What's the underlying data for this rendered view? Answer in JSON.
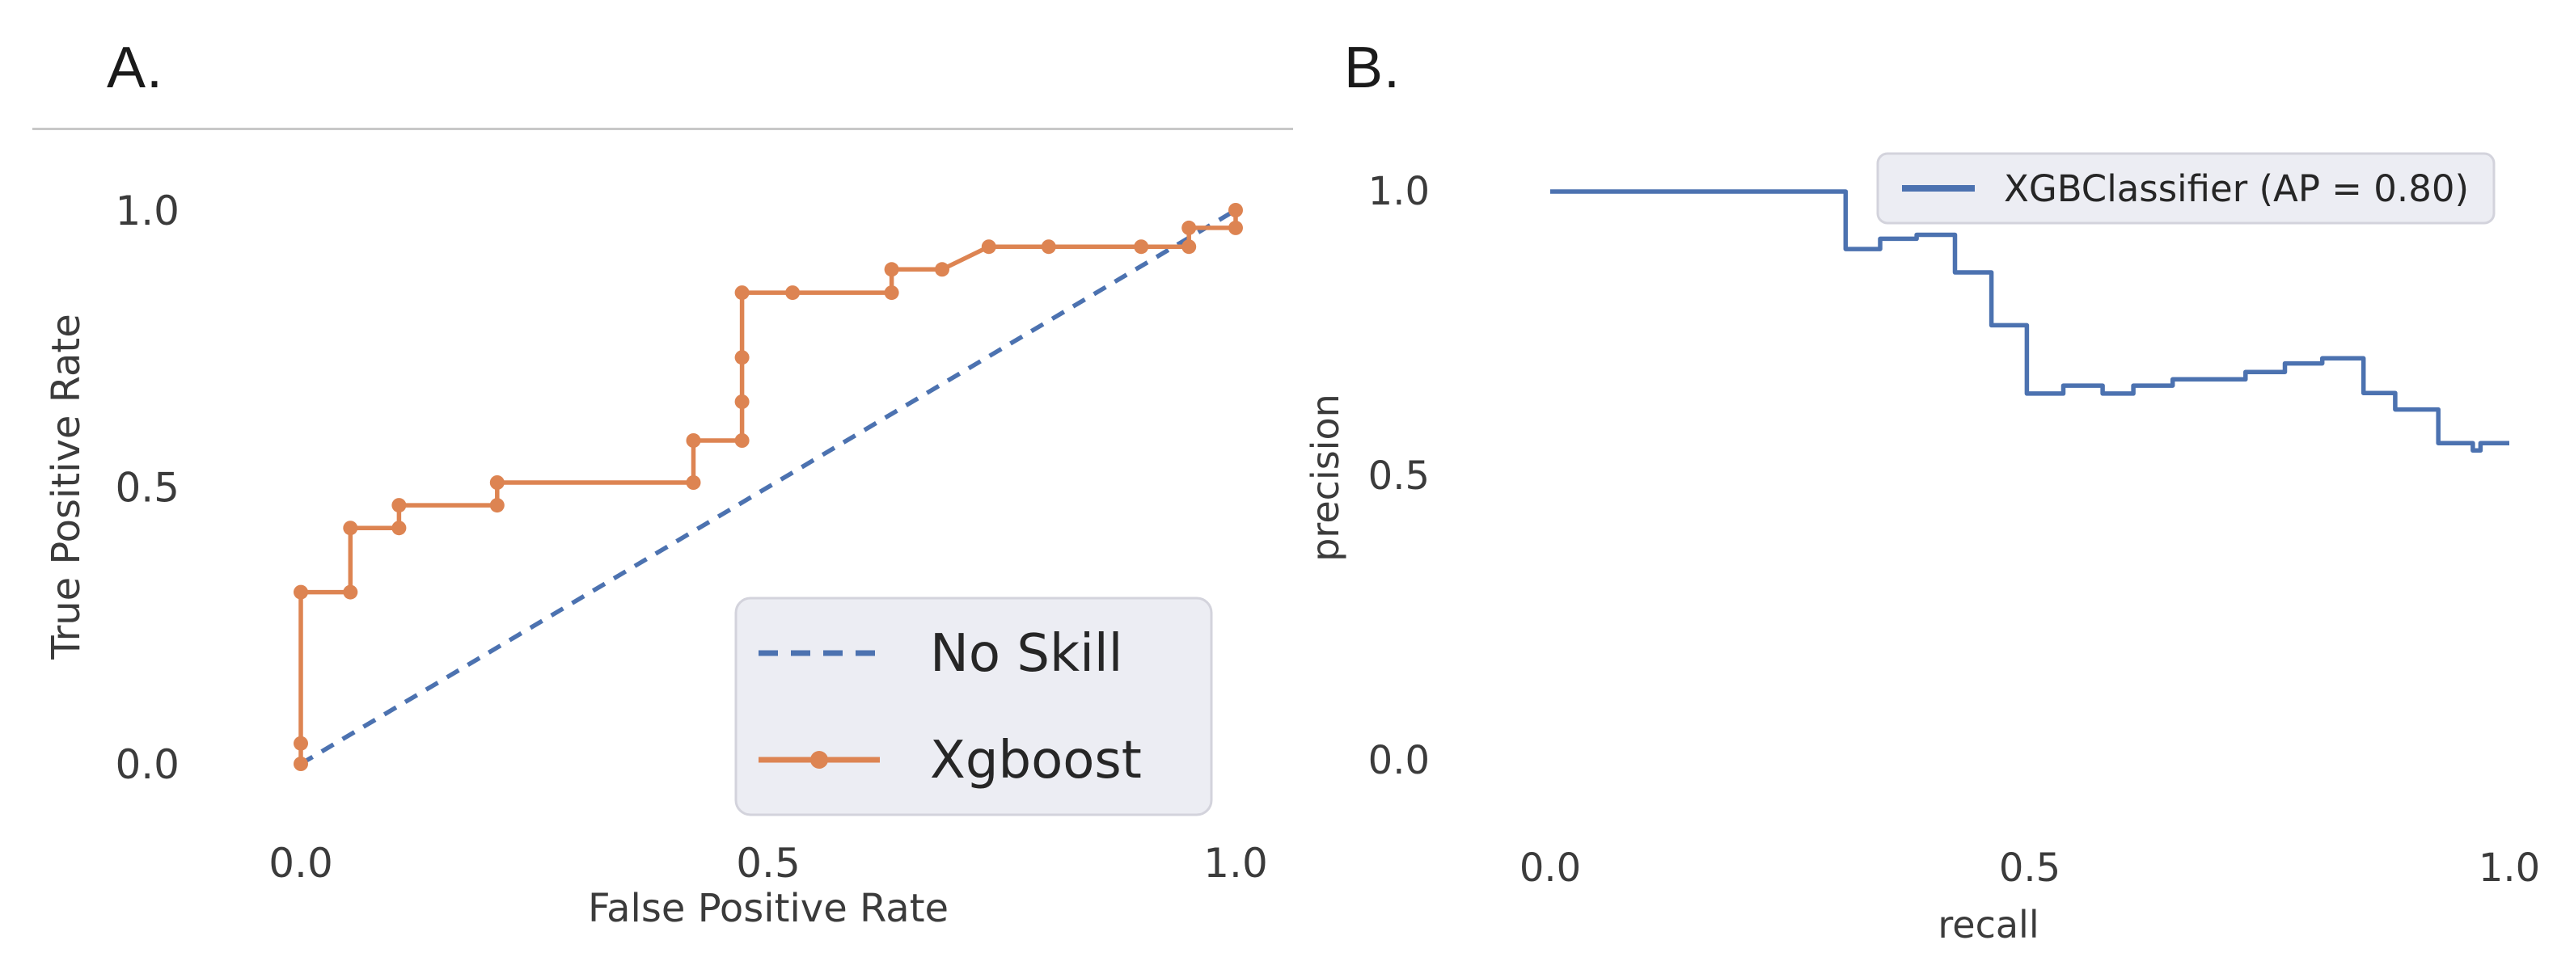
{
  "panels": [
    {
      "label": "A."
    },
    {
      "label": "B."
    }
  ],
  "colors": {
    "blue": "#4C72B0",
    "orange": "#DD8452",
    "legend_bg": "#ECEDF3",
    "legend_border": "#D3D3DC",
    "separator": "#C8C8C8",
    "tick_text": "#3B3B3B",
    "panel_label_text": "#1A1A1A"
  },
  "chart_data": [
    {
      "type": "line",
      "panel_label": "A.",
      "title": "",
      "xlabel": "False Positive Rate",
      "ylabel": "True Positive Rate",
      "xlim": [
        0,
        1
      ],
      "ylim": [
        0,
        1
      ],
      "grid": false,
      "xticks": {
        "values": [
          0,
          0.5,
          1
        ],
        "labels": [
          "0.0",
          "0.5",
          "1.0"
        ]
      },
      "yticks": {
        "values": [
          0,
          0.5,
          1
        ],
        "labels": [
          "0.0",
          "0.5",
          "1.0"
        ]
      },
      "legend": {
        "position": "lower right",
        "entries": [
          {
            "label": "No Skill",
            "color": "#4C72B0",
            "line_style": "dashed",
            "marker": false
          },
          {
            "label": "Xgboost",
            "color": "#DD8452",
            "line_style": "solid",
            "marker": true
          }
        ]
      },
      "series": [
        {
          "name": "No Skill",
          "color": "#4C72B0",
          "style": "dashed",
          "marker": false,
          "x": [
            0,
            1
          ],
          "y": [
            0,
            1
          ]
        },
        {
          "name": "Xgboost",
          "color": "#DD8452",
          "style": "solid",
          "marker": true,
          "x": [
            0,
            0,
            0,
            0.053,
            0.053,
            0.105,
            0.105,
            0.21,
            0.21,
            0.42,
            0.42,
            0.472,
            0.472,
            0.472,
            0.472,
            0.526,
            0.632,
            0.632,
            0.686,
            0.736,
            0.8,
            0.899,
            0.95,
            0.95,
            1.0,
            1.0
          ],
          "y": [
            0,
            0.037,
            0.31,
            0.31,
            0.426,
            0.426,
            0.467,
            0.467,
            0.508,
            0.508,
            0.584,
            0.584,
            0.654,
            0.734,
            0.851,
            0.851,
            0.851,
            0.893,
            0.893,
            0.934,
            0.934,
            0.934,
            0.934,
            0.968,
            0.968,
            1.0
          ]
        }
      ]
    },
    {
      "type": "line",
      "panel_label": "B.",
      "title": "",
      "xlabel": "recall",
      "ylabel": "precision",
      "xlim": [
        0,
        1
      ],
      "ylim": [
        0,
        1
      ],
      "grid": false,
      "xticks": {
        "values": [
          0,
          0.5,
          1
        ],
        "labels": [
          "0.0",
          "0.5",
          "1.0"
        ]
      },
      "yticks": {
        "values": [
          0,
          0.5,
          1
        ],
        "labels": [
          "0.0",
          "0.5",
          "1.0"
        ]
      },
      "legend": {
        "position": "upper right",
        "entries": [
          {
            "label": "XGBClassifier (AP = 0.80)",
            "color": "#4C72B0",
            "line_style": "solid",
            "marker": false
          }
        ]
      },
      "series": [
        {
          "name": "XGBClassifier (AP = 0.80)",
          "color": "#4C72B0",
          "style": "solid",
          "marker": false,
          "x": [
            0,
            0.308,
            0.308,
            0.344,
            0.344,
            0.382,
            0.382,
            0.422,
            0.422,
            0.46,
            0.46,
            0.497,
            0.497,
            0.535,
            0.535,
            0.576,
            0.576,
            0.608,
            0.608,
            0.649,
            0.649,
            0.725,
            0.725,
            0.766,
            0.766,
            0.805,
            0.805,
            0.848,
            0.848,
            0.881,
            0.881,
            0.926,
            0.926,
            0.962,
            0.962,
            0.97,
            0.97,
            1.0
          ],
          "y": [
            1.0,
            1.0,
            0.899,
            0.899,
            0.917,
            0.917,
            0.924,
            0.924,
            0.858,
            0.858,
            0.765,
            0.765,
            0.645,
            0.645,
            0.659,
            0.659,
            0.645,
            0.645,
            0.659,
            0.659,
            0.67,
            0.67,
            0.683,
            0.683,
            0.698,
            0.698,
            0.707,
            0.707,
            0.646,
            0.646,
            0.617,
            0.617,
            0.558,
            0.558,
            0.545,
            0.545,
            0.558,
            0.558
          ]
        }
      ]
    }
  ]
}
